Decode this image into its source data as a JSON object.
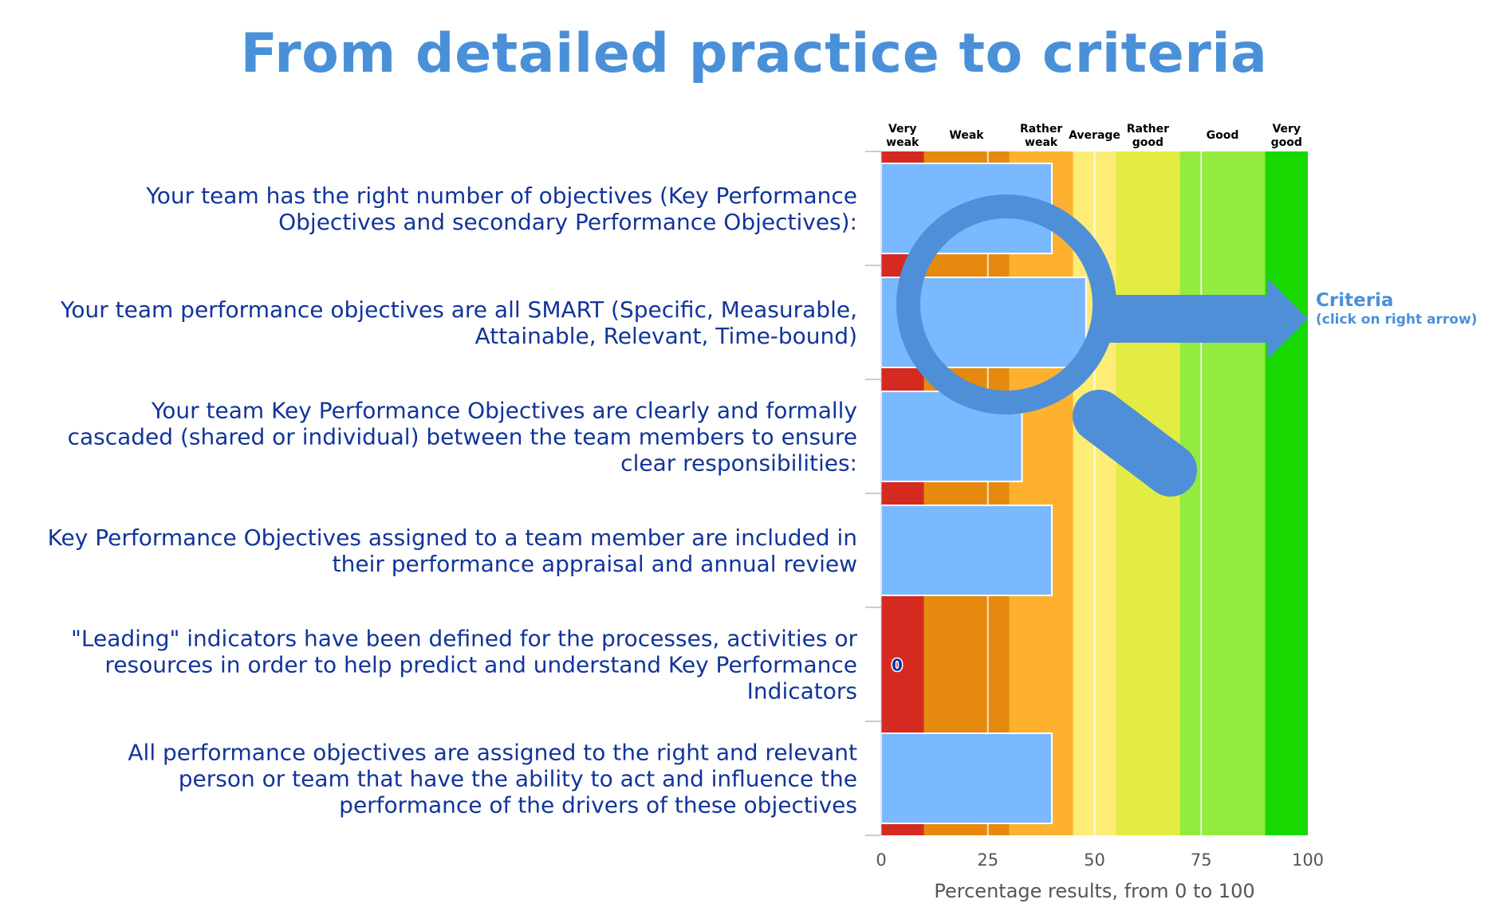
{
  "title": "From detailed practice to criteria",
  "criteria": {
    "label": "Criteria",
    "hint": "(click on right arrow)"
  },
  "icons": [
    "magnifier-icon",
    "right-arrow-icon"
  ],
  "chart_data": {
    "type": "bar",
    "orientation": "horizontal",
    "title": "",
    "xlabel": "Percentage results, from 0 to 100",
    "xlim": [
      0,
      100
    ],
    "xticks": [
      0,
      25,
      50,
      75,
      100
    ],
    "grid": true,
    "categories": [
      [
        "Your team has the right number of objectives (Key Performance",
        "Objectives and secondary Performance Objectives):"
      ],
      [
        "Your team performance objectives are all SMART (Specific, Measurable,",
        "Attainable, Relevant, Time-bound)"
      ],
      [
        "Your team Key Performance Objectives are clearly and formally",
        "cascaded (shared or individual) between the team members to ensure",
        "clear responsibilities:"
      ],
      [
        "Key Performance Objectives assigned to a team member are included in",
        "their performance appraisal and annual review"
      ],
      [
        "\"Leading\" indicators have been defined for the processes, activities or",
        "resources in order to help predict and understand Key Performance",
        "Indicators"
      ],
      [
        "All performance objectives are assigned to the right and relevant",
        "person or team that have the ability to act and influence the",
        "performance of the drivers of these objectives"
      ]
    ],
    "values": [
      40,
      48,
      33,
      40,
      0,
      40
    ],
    "value_labels": [
      "",
      "",
      "",
      "",
      "0",
      ""
    ],
    "bar_color": "#7ab8ff",
    "bands": [
      {
        "label": [
          "Very",
          "weak"
        ],
        "from": 0,
        "to": 10,
        "color": "#d42a20"
      },
      {
        "label": [
          "Weak"
        ],
        "from": 10,
        "to": 30,
        "color": "#e58a0e"
      },
      {
        "label": [
          "Rather",
          "weak"
        ],
        "from": 30,
        "to": 45,
        "color": "#fdb12e"
      },
      {
        "label": [
          "Average"
        ],
        "from": 45,
        "to": 55,
        "color": "#fded77"
      },
      {
        "label": [
          "Rather",
          "good"
        ],
        "from": 55,
        "to": 70,
        "color": "#e3ec42"
      },
      {
        "label": [
          "Good"
        ],
        "from": 70,
        "to": 90,
        "color": "#93eb40"
      },
      {
        "label": [
          "Very",
          "good"
        ],
        "from": 90,
        "to": 100,
        "color": "#17d800"
      }
    ]
  }
}
